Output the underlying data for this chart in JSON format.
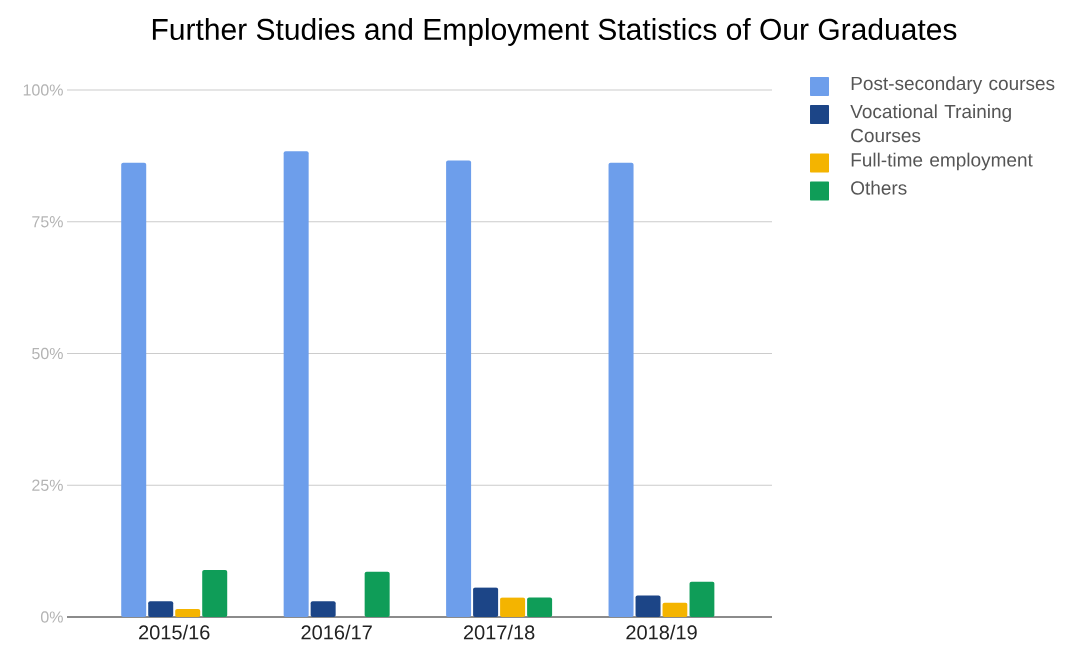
{
  "chart_data": {
    "type": "bar",
    "title": "Further Studies and Employment Statistics of Our Graduates",
    "categories": [
      "2015/16",
      "2016/17",
      "2017/18",
      "2018/19"
    ],
    "series": [
      {
        "name": "Post-secondary courses",
        "color": "#6d9eeb",
        "values": [
          86.2,
          88.4,
          86.6,
          86.2
        ]
      },
      {
        "name": "Vocational Training Courses",
        "color": "#1c4587",
        "values": [
          3.0,
          3.0,
          5.6,
          4.1
        ]
      },
      {
        "name": "Full-time employment",
        "color": "#f4b400",
        "values": [
          1.5,
          0,
          3.7,
          2.7
        ]
      },
      {
        "name": "Others",
        "color": "#0f9d58",
        "values": [
          8.9,
          8.6,
          3.7,
          6.7
        ]
      }
    ],
    "ylim": [
      0,
      100
    ],
    "yticks": [
      {
        "value": 0,
        "label": "0%"
      },
      {
        "value": 25,
        "label": "25%"
      },
      {
        "value": 50,
        "label": "50%"
      },
      {
        "value": 75,
        "label": "75%"
      },
      {
        "value": 100,
        "label": "100%"
      }
    ],
    "grid": "y",
    "legend": "right"
  }
}
